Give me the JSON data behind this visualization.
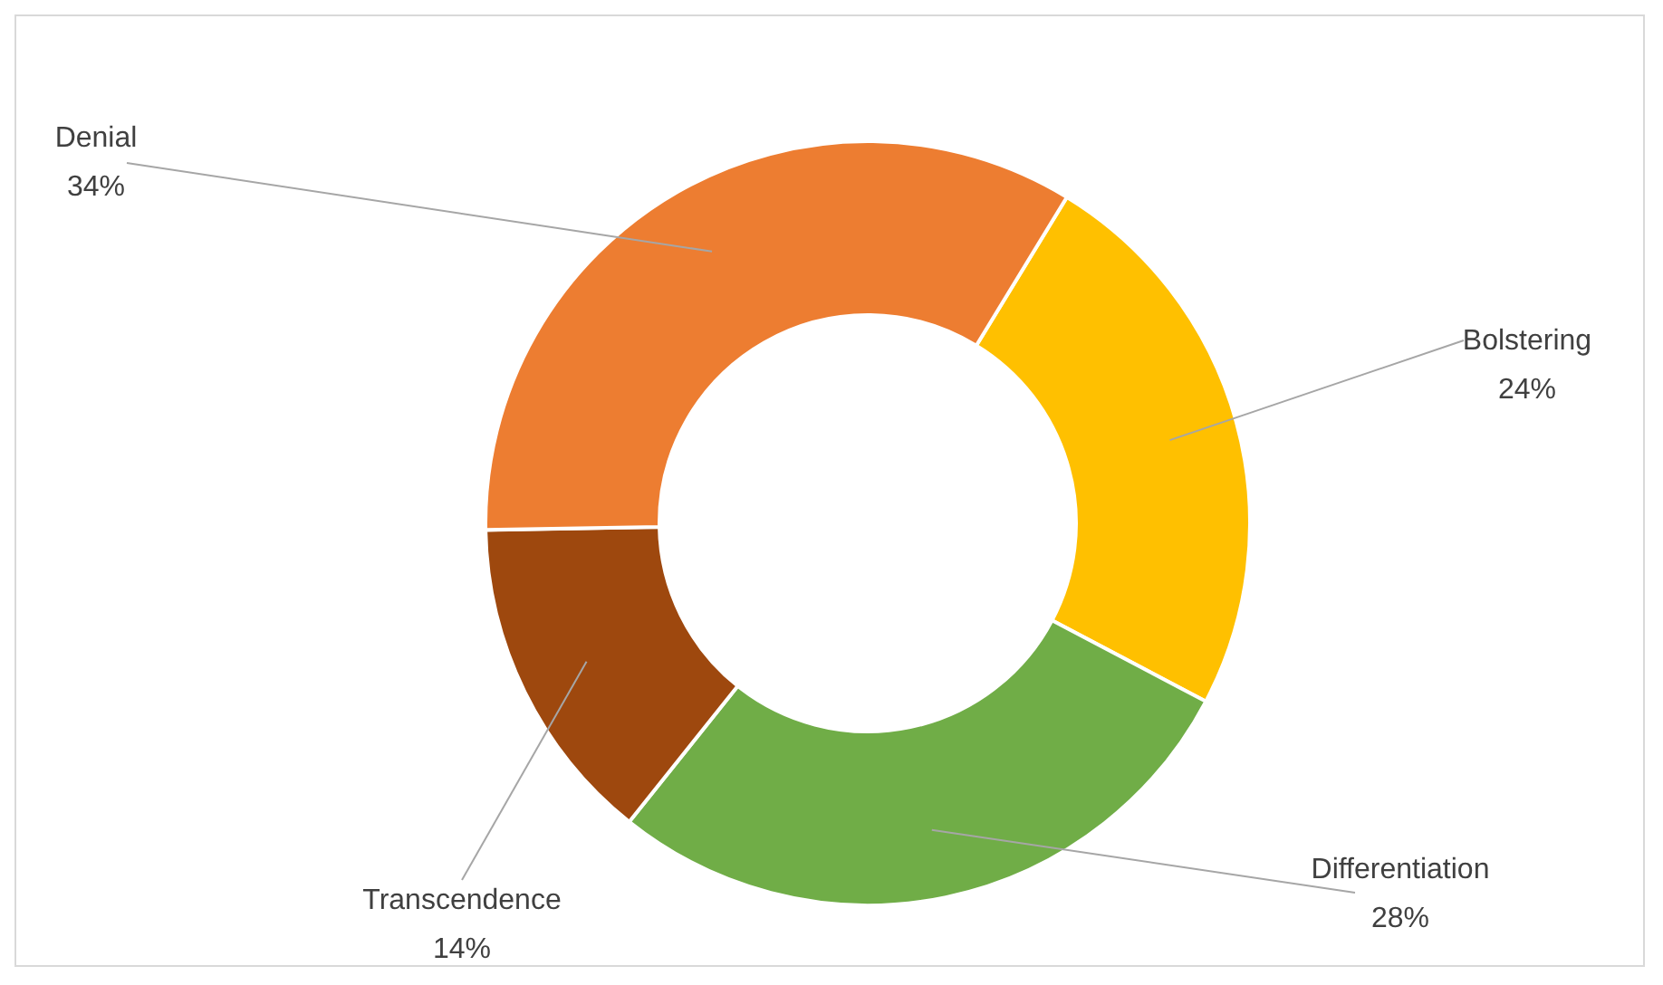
{
  "chart_data": {
    "type": "donut",
    "categories": [
      "Bolstering",
      "Differentiation",
      "Transcendence",
      "Denial"
    ],
    "values": [
      24,
      28,
      14,
      34
    ],
    "value_labels": [
      "24%",
      "28%",
      "14%",
      "34%"
    ],
    "colors": [
      "#ffc000",
      "#70ad47",
      "#9e480e",
      "#ed7d31"
    ]
  }
}
